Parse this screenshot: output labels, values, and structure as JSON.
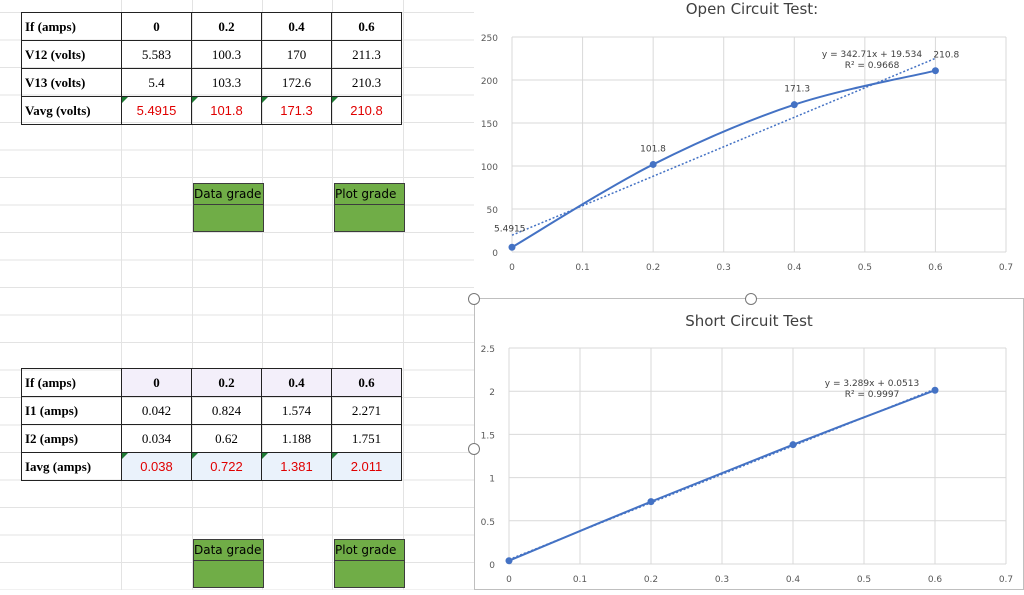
{
  "oc_table": {
    "rows": [
      {
        "label": "If (amps)",
        "cells": [
          "0",
          "0.2",
          "0.4",
          "0.6"
        ],
        "style": "bold"
      },
      {
        "label": "V12 (volts)",
        "cells": [
          "5.583",
          "100.3",
          "170",
          "211.3"
        ],
        "style": "normal"
      },
      {
        "label": "V13 (volts)",
        "cells": [
          "5.4",
          "103.3",
          "172.6",
          "210.3"
        ],
        "style": "normal"
      },
      {
        "label": "Vavg (volts)",
        "cells": [
          "5.4915",
          "101.8",
          "171.3",
          "210.8"
        ],
        "style": "red"
      }
    ]
  },
  "sc_table": {
    "rows": [
      {
        "label": "If (amps)",
        "cells": [
          "0",
          "0.2",
          "0.4",
          "0.6"
        ],
        "style": "bold"
      },
      {
        "label": "I1 (amps)",
        "cells": [
          "0.042",
          "0.824",
          "1.574",
          "2.271"
        ],
        "style": "normal"
      },
      {
        "label": "I2 (amps)",
        "cells": [
          "0.034",
          "0.62",
          "1.188",
          "1.751"
        ],
        "style": "normal"
      },
      {
        "label": "Iavg (amps)",
        "cells": [
          "0.038",
          "0.722",
          "1.381",
          "2.011"
        ],
        "style": "red"
      }
    ]
  },
  "buttons": {
    "data_grade": "Data grade",
    "plot_grade": "Plot grade"
  },
  "colors": {
    "series": "#4472c4",
    "grade_fill": "#70ad47",
    "red_text": "#e00000"
  },
  "chart_data": [
    {
      "type": "scatter",
      "title": "Open Circuit Test:",
      "x": [
        0,
        0.2,
        0.4,
        0.6
      ],
      "y": [
        5.4915,
        101.8,
        171.3,
        210.8
      ],
      "data_labels": [
        "5.4915",
        "101.8",
        "171.3",
        "210.8"
      ],
      "smooth_line": true,
      "trendline": {
        "equation": "y = 342.71x + 19.534",
        "r2": "R² = 0.9668",
        "slope": 342.71,
        "intercept": 19.534
      },
      "xlim": [
        0,
        0.7
      ],
      "ylim": [
        0,
        250
      ],
      "xticks": [
        "0",
        "0.1",
        "0.2",
        "0.3",
        "0.4",
        "0.5",
        "0.6",
        "0.7"
      ],
      "yticks": [
        "0",
        "50",
        "100",
        "150",
        "200",
        "250"
      ],
      "grid": true
    },
    {
      "type": "scatter",
      "title": "Short Circuit Test",
      "x": [
        0,
        0.2,
        0.4,
        0.6
      ],
      "y": [
        0.038,
        0.722,
        1.381,
        2.011
      ],
      "smooth_line": true,
      "trendline": {
        "equation": "y = 3.289x + 0.0513",
        "r2": "R² = 0.9997",
        "slope": 3.289,
        "intercept": 0.0513
      },
      "xlim": [
        0,
        0.7
      ],
      "ylim": [
        0,
        2.5
      ],
      "xticks": [
        "0",
        "0.1",
        "0.2",
        "0.3",
        "0.4",
        "0.5",
        "0.6",
        "0.7"
      ],
      "yticks": [
        "0",
        "0.5",
        "1",
        "1.5",
        "2",
        "2.5"
      ],
      "grid": true
    }
  ]
}
